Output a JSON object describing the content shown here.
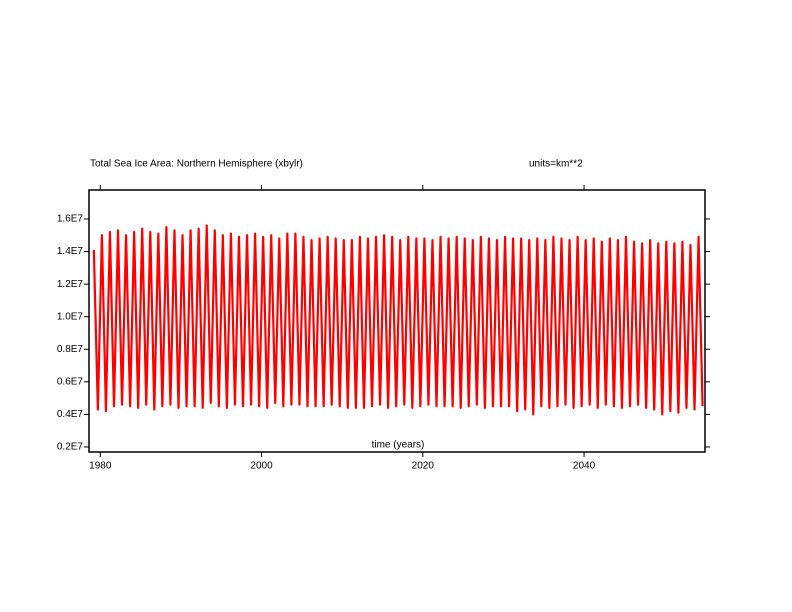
{
  "chart_data": {
    "type": "line",
    "title": "Total Sea Ice Area: Northern Hemisphere (xbylr)",
    "subtitle": "units=km**2",
    "x_label": "time (years)",
    "xlim": [
      1978.6,
      2055.0
    ],
    "xticks": [
      1980,
      2000,
      2020,
      2040
    ],
    "ylim": [
      1690000,
      17780000
    ],
    "yticks": [
      {
        "value": 2000000,
        "label": "0.2E7"
      },
      {
        "value": 4000000,
        "label": "0.4E7"
      },
      {
        "value": 6000000,
        "label": "0.6E7"
      },
      {
        "value": 8000000,
        "label": "0.8E7"
      },
      {
        "value": 10000000,
        "label": "1.0E7"
      },
      {
        "value": 12000000,
        "label": "1.2E7"
      },
      {
        "value": 14000000,
        "label": "1.4E7"
      },
      {
        "value": 16000000,
        "label": "1.6E7"
      }
    ],
    "series": [
      {
        "color": "#ff0000",
        "x": [
          1979.2,
          1979.7,
          1980.2,
          1980.7,
          1981.2,
          1981.7,
          1982.2,
          1982.7,
          1983.2,
          1983.7,
          1984.2,
          1984.7,
          1985.2,
          1985.7,
          1986.2,
          1986.7,
          1987.2,
          1987.7,
          1988.2,
          1988.7,
          1989.2,
          1989.7,
          1990.2,
          1990.7,
          1991.2,
          1991.7,
          1992.2,
          1992.7,
          1993.2,
          1993.7,
          1994.2,
          1994.7,
          1995.2,
          1995.7,
          1996.2,
          1996.7,
          1997.2,
          1997.7,
          1998.2,
          1998.7,
          1999.2,
          1999.7,
          2000.2,
          2000.7,
          2001.2,
          2001.7,
          2002.2,
          2002.7,
          2003.2,
          2003.7,
          2004.2,
          2004.7,
          2005.2,
          2005.7,
          2006.2,
          2006.7,
          2007.2,
          2007.7,
          2008.2,
          2008.7,
          2009.2,
          2009.7,
          2010.2,
          2010.7,
          2011.2,
          2011.7,
          2012.2,
          2012.7,
          2013.2,
          2013.7,
          2014.2,
          2014.7,
          2015.2,
          2015.7,
          2016.2,
          2016.7,
          2017.2,
          2017.7,
          2018.2,
          2018.7,
          2019.2,
          2019.7,
          2020.2,
          2020.7,
          2021.2,
          2021.7,
          2022.2,
          2022.7,
          2023.2,
          2023.7,
          2024.2,
          2024.7,
          2025.2,
          2025.7,
          2026.2,
          2026.7,
          2027.2,
          2027.7,
          2028.2,
          2028.7,
          2029.2,
          2029.7,
          2030.2,
          2030.7,
          2031.2,
          2031.7,
          2032.2,
          2032.7,
          2033.2,
          2033.7,
          2034.2,
          2034.7,
          2035.2,
          2035.7,
          2036.2,
          2036.7,
          2037.2,
          2037.7,
          2038.2,
          2038.7,
          2039.2,
          2039.7,
          2040.2,
          2040.7,
          2041.2,
          2041.7,
          2042.2,
          2042.7,
          2043.2,
          2043.7,
          2044.2,
          2044.7,
          2045.2,
          2045.7,
          2046.2,
          2046.7,
          2047.2,
          2047.7,
          2048.2,
          2048.7,
          2049.2,
          2049.7,
          2050.2,
          2050.7,
          2051.2,
          2051.7,
          2052.2,
          2052.7,
          2053.2,
          2053.7,
          2054.2,
          2054.7
        ],
        "values": [
          14100000,
          4300000,
          15000000,
          4200000,
          15200000,
          4500000,
          15300000,
          4600000,
          15000000,
          4500000,
          15200000,
          4400000,
          15400000,
          4600000,
          15200000,
          4300000,
          15100000,
          4500000,
          15500000,
          4600000,
          15300000,
          4400000,
          15000000,
          4500000,
          15300000,
          4500000,
          15400000,
          4400000,
          15600000,
          4700000,
          15300000,
          4500000,
          15000000,
          4400000,
          15100000,
          4600000,
          14900000,
          4500000,
          15000000,
          4600000,
          15100000,
          4500000,
          14900000,
          4400000,
          15000000,
          4700000,
          14800000,
          4500000,
          15100000,
          4600000,
          15100000,
          4600000,
          14900000,
          4500000,
          14700000,
          4500000,
          14800000,
          4500000,
          14900000,
          4600000,
          14800000,
          4500000,
          14700000,
          4400000,
          14700000,
          4400000,
          14900000,
          4400000,
          14800000,
          4500000,
          14900000,
          4600000,
          15000000,
          4400000,
          14900000,
          4500000,
          14700000,
          4600000,
          14900000,
          4400000,
          14800000,
          4500000,
          14800000,
          4600000,
          14700000,
          4500000,
          14900000,
          4500000,
          14800000,
          4500000,
          14900000,
          4400000,
          14800000,
          4500000,
          14700000,
          4600000,
          14900000,
          4400000,
          14800000,
          4500000,
          14700000,
          4500000,
          14900000,
          4500000,
          14800000,
          4200000,
          14800000,
          4300000,
          14700000,
          4000000,
          14800000,
          4500000,
          14700000,
          4400000,
          14900000,
          4500000,
          14800000,
          4600000,
          14700000,
          4400000,
          14900000,
          4500000,
          14700000,
          4600000,
          14800000,
          4400000,
          14600000,
          4600000,
          14800000,
          4500000,
          14700000,
          4400000,
          14900000,
          4500000,
          14600000,
          4600000,
          14500000,
          4400000,
          14700000,
          4300000,
          14500000,
          4000000,
          14600000,
          4200000,
          14500000,
          4100000,
          14600000,
          4400000,
          14400000,
          4300000,
          14900000,
          4500000
        ]
      }
    ]
  }
}
